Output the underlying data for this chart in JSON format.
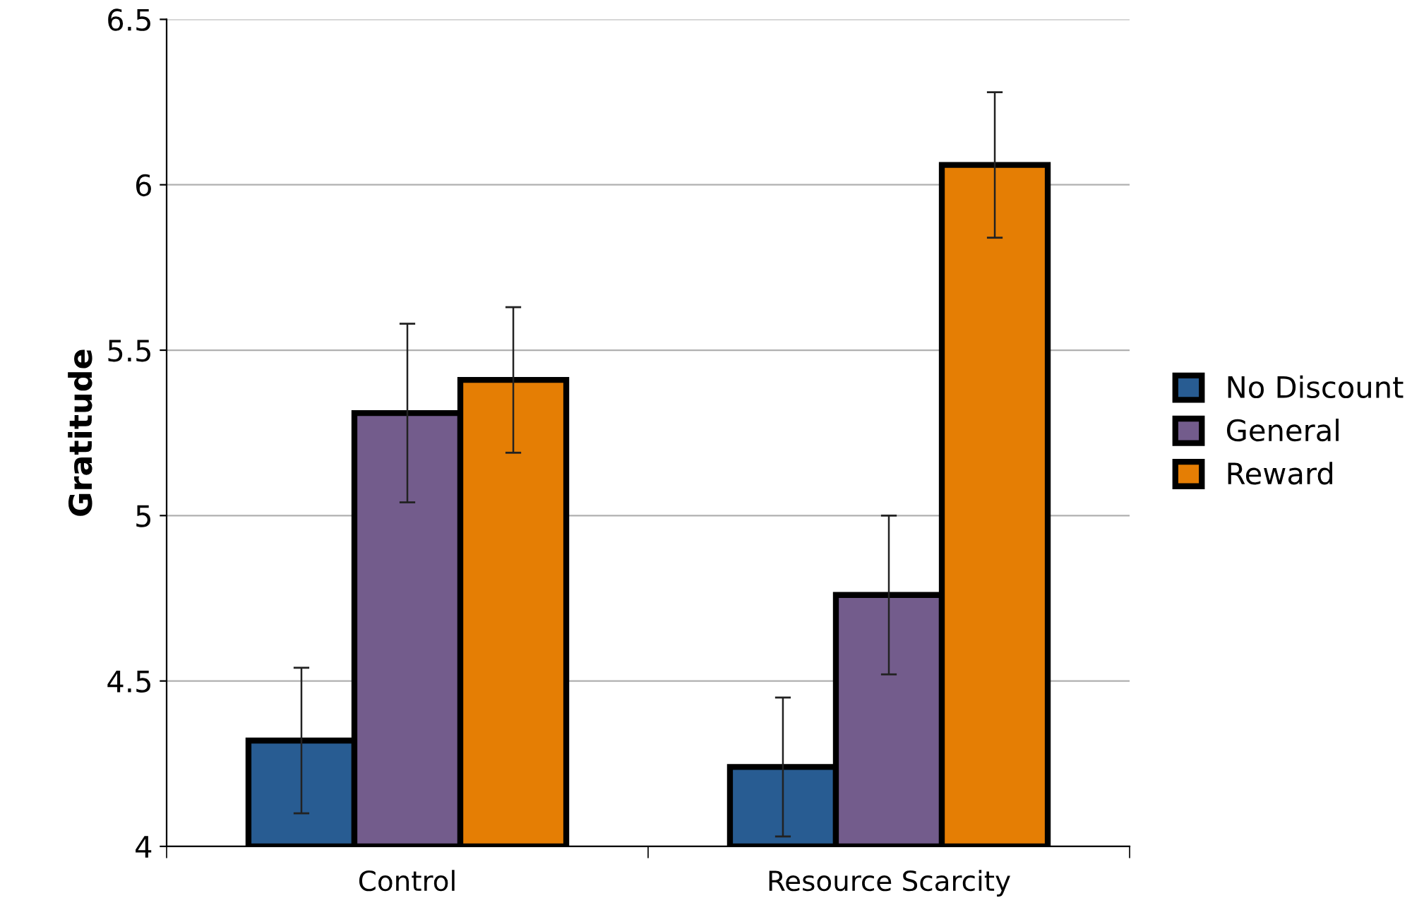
{
  "chart_data": {
    "type": "bar",
    "ylabel": "Gratitude",
    "categories": [
      "Control",
      "Resource Scarcity"
    ],
    "series": [
      {
        "name": "No Discount",
        "color": "#285c92",
        "values": [
          4.32,
          4.24
        ],
        "errors": [
          0.22,
          0.21
        ]
      },
      {
        "name": "General",
        "color": "#735c8c",
        "values": [
          5.31,
          4.76
        ],
        "errors": [
          0.27,
          0.24
        ]
      },
      {
        "name": "Reward",
        "color": "#e57e04",
        "values": [
          5.41,
          6.06
        ],
        "errors": [
          0.22,
          0.22
        ]
      }
    ],
    "ylim": [
      4,
      6.5
    ],
    "yticks": [
      4,
      4.5,
      5,
      5.5,
      6,
      6.5
    ],
    "grid": "y",
    "legend": "right"
  }
}
